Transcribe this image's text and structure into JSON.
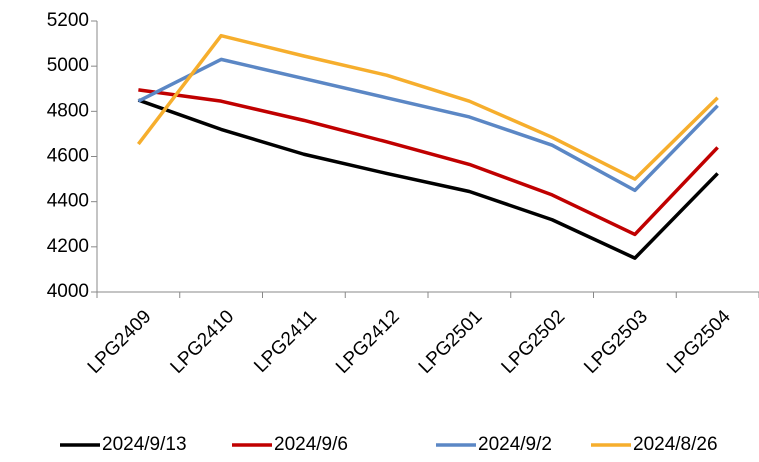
{
  "chart_data": {
    "type": "line",
    "categories": [
      "LPG2409",
      "LPG2410",
      "LPG2411",
      "LPG2412",
      "LPG2501",
      "LPG2502",
      "LPG2503",
      "LPG2504"
    ],
    "series": [
      {
        "name": "2024/9/13",
        "color": "#000000",
        "values": [
          4850,
          4720,
          4610,
          4525,
          4445,
          4320,
          4150,
          4525
        ]
      },
      {
        "name": "2024/9/6",
        "color": "#c00000",
        "values": [
          4895,
          4845,
          4760,
          4665,
          4565,
          4430,
          4255,
          4640
        ]
      },
      {
        "name": "2024/9/2",
        "color": "#5b87c5",
        "values": [
          4845,
          5030,
          4945,
          4860,
          4775,
          4650,
          4450,
          4825
        ]
      },
      {
        "name": "2024/8/26",
        "color": "#f6ae2d",
        "values": [
          4655,
          5135,
          5045,
          4960,
          4845,
          4685,
          4500,
          4860
        ]
      }
    ],
    "ylim": [
      4000,
      5200
    ],
    "yticks": [
      4000,
      4200,
      4400,
      4600,
      4800,
      5000,
      5200
    ],
    "grid": false,
    "legend": "bottom"
  }
}
